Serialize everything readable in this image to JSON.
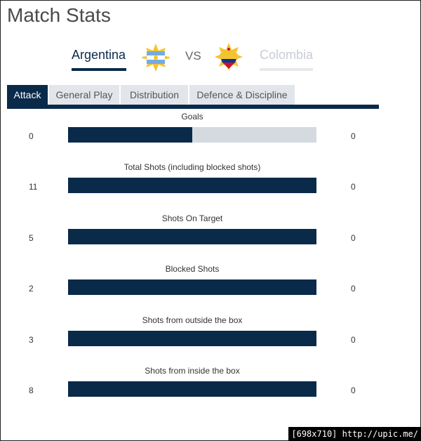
{
  "page": {
    "title": "Match Stats"
  },
  "match": {
    "home_team": "Argentina",
    "away_team": "Colombia",
    "vs_label": "VS"
  },
  "tabs": [
    {
      "label": "Attack",
      "active": true
    },
    {
      "label": "General Play",
      "active": false
    },
    {
      "label": "Distribution",
      "active": false
    },
    {
      "label": "Defence & Discipline",
      "active": false
    }
  ],
  "stats": [
    {
      "label": "Goals",
      "home": "0",
      "away": "0",
      "home_share": 0.5
    },
    {
      "label": "Total Shots (including blocked shots)",
      "home": "11",
      "away": "0",
      "home_share": 1.0
    },
    {
      "label": "Shots On Target",
      "home": "5",
      "away": "0",
      "home_share": 1.0
    },
    {
      "label": "Blocked Shots",
      "home": "2",
      "away": "0",
      "home_share": 1.0
    },
    {
      "label": "Shots from outside the box",
      "home": "3",
      "away": "0",
      "home_share": 1.0
    },
    {
      "label": "Shots from inside the box",
      "home": "8",
      "away": "0",
      "home_share": 1.0
    }
  ],
  "footer": {
    "text": "[698x710] http://upic.me/"
  },
  "colors": {
    "primary": "#0a2a4a",
    "bar_bg": "#d5d9e0",
    "tab_bg": "#e2e5ea"
  }
}
